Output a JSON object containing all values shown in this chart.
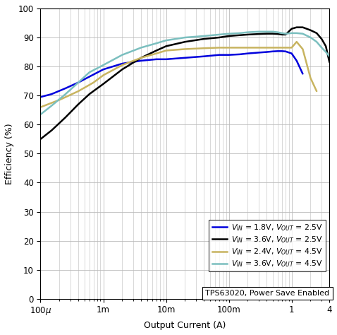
{
  "xlabel": "Output Current (A)",
  "ylabel": "Efficiency (%)",
  "ylim": [
    0,
    100
  ],
  "annotation": "TPS63020, Power Save Enabled",
  "legend_colors": [
    "#0000dd",
    "#000000",
    "#c8b460",
    "#7bbfbf"
  ],
  "legend_labels": [
    "$V_{IN}$ = 1.8V, $V_{OUT}$ = 2.5V",
    "$V_{IN}$ = 3.6V, $V_{OUT}$ = 2.5V",
    "$V_{IN}$ = 2.4V, $V_{OUT}$ = 4.5V",
    "$V_{IN}$ = 3.6V, $V_{OUT}$ = 4.5V"
  ],
  "curves": {
    "blue": {
      "x": [
        0.0001,
        0.00015,
        0.00025,
        0.0004,
        0.0006,
        0.001,
        0.002,
        0.004,
        0.007,
        0.01,
        0.02,
        0.04,
        0.07,
        0.1,
        0.15,
        0.2,
        0.3,
        0.4,
        0.5,
        0.6,
        0.7,
        0.8,
        1.0,
        1.2,
        1.5
      ],
      "y": [
        69.5,
        70.5,
        72.5,
        74.5,
        76.5,
        79.0,
        81.0,
        82.0,
        82.5,
        82.5,
        83.0,
        83.5,
        84.0,
        84.0,
        84.2,
        84.5,
        84.8,
        85.0,
        85.2,
        85.3,
        85.3,
        85.2,
        84.5,
        82.0,
        77.5
      ]
    },
    "black": {
      "x": [
        0.0001,
        0.00015,
        0.00025,
        0.0004,
        0.0006,
        0.001,
        0.002,
        0.004,
        0.007,
        0.01,
        0.02,
        0.04,
        0.07,
        0.1,
        0.15,
        0.2,
        0.3,
        0.4,
        0.5,
        0.6,
        0.7,
        0.8,
        1.0,
        1.2,
        1.5,
        2.0,
        2.5,
        3.0,
        3.5,
        4.0
      ],
      "y": [
        55.0,
        58.0,
        62.5,
        67.0,
        70.5,
        74.0,
        79.0,
        83.0,
        85.5,
        87.0,
        88.5,
        89.5,
        90.0,
        90.5,
        90.8,
        91.0,
        91.2,
        91.3,
        91.3,
        91.2,
        91.0,
        91.0,
        93.0,
        93.5,
        93.5,
        92.5,
        91.5,
        89.5,
        87.0,
        81.5
      ]
    },
    "yellow": {
      "x": [
        0.0001,
        0.0002,
        0.0004,
        0.0007,
        0.001,
        0.002,
        0.004,
        0.007,
        0.01,
        0.02,
        0.04,
        0.07,
        0.1,
        0.15,
        0.2,
        0.3,
        0.4,
        0.5,
        0.6,
        0.7,
        0.8,
        1.0,
        1.2,
        1.5,
        2.0,
        2.5
      ],
      "y": [
        66.0,
        68.5,
        71.5,
        74.5,
        77.0,
        80.5,
        83.0,
        84.5,
        85.5,
        86.0,
        86.3,
        86.5,
        86.5,
        86.5,
        86.5,
        86.5,
        86.5,
        86.5,
        86.5,
        86.5,
        86.5,
        86.5,
        88.5,
        86.0,
        76.0,
        71.5
      ]
    },
    "cyan": {
      "x": [
        0.0001,
        0.00015,
        0.00025,
        0.0004,
        0.0006,
        0.001,
        0.002,
        0.004,
        0.007,
        0.01,
        0.02,
        0.04,
        0.07,
        0.1,
        0.15,
        0.2,
        0.3,
        0.4,
        0.5,
        0.6,
        0.7,
        0.8,
        1.0,
        1.2,
        1.5,
        2.0,
        2.5,
        3.0,
        3.5,
        4.0
      ],
      "y": [
        63.5,
        66.5,
        70.5,
        74.5,
        78.0,
        80.5,
        84.0,
        86.5,
        88.0,
        89.0,
        90.0,
        90.5,
        91.0,
        91.3,
        91.5,
        91.8,
        92.0,
        92.0,
        92.0,
        91.8,
        91.5,
        91.3,
        91.5,
        91.5,
        91.3,
        90.0,
        88.5,
        86.5,
        85.0,
        83.5
      ]
    }
  },
  "grid_color": "#bbbbbb",
  "bg_color": "#ffffff",
  "lw": 1.8
}
